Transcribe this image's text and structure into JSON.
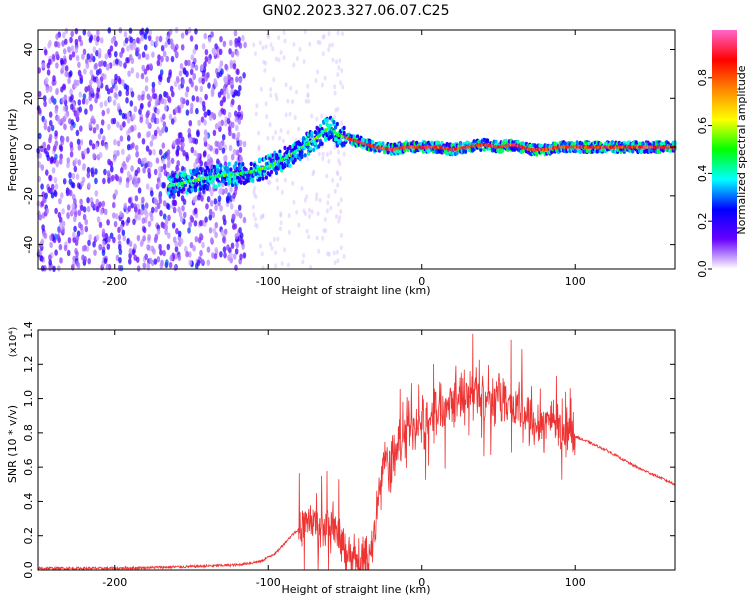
{
  "title": "GN02.2023.327.06.07.C25",
  "colors": {
    "snr_line": "#ee3333",
    "axis": "#000000",
    "colormap": [
      "#ff66cc",
      "#ff0000",
      "#ff8800",
      "#ffff00",
      "#00ff00",
      "#00ffff",
      "#0000ff",
      "#6600ff",
      "#ffffff"
    ]
  },
  "chart_data": [
    {
      "type": "heatmap",
      "title": "",
      "xlabel": "Height of straight line (km)",
      "ylabel": "Frequency (Hz)",
      "xlim": [
        -250,
        165
      ],
      "ylim": [
        -50,
        48
      ],
      "x_ticks": [
        -200,
        -100,
        0,
        100
      ],
      "x_tick_labels": [
        "-200",
        "-100",
        "0",
        "100"
      ],
      "y_ticks": [
        -40,
        -20,
        0,
        20,
        40
      ],
      "y_tick_labels": [
        "-40",
        "-20",
        "0",
        "20",
        "40"
      ],
      "colorbar": {
        "label": "Normalized spectral amplitude",
        "range": [
          0,
          1
        ],
        "ticks": [
          0.0,
          0.2,
          0.4,
          0.6,
          0.8
        ],
        "tick_labels": [
          "0.0",
          "0.2",
          "0.4",
          "0.6",
          "0.8"
        ]
      },
      "ridge": {
        "x": [
          -165,
          -150,
          -135,
          -120,
          -110,
          -100,
          -90,
          -80,
          -70,
          -60,
          -55,
          -50,
          -40,
          -30,
          -20,
          -10,
          0,
          10,
          20,
          30,
          40,
          50,
          60,
          70,
          80,
          90,
          100,
          120,
          140,
          165
        ],
        "y": [
          -16,
          -14,
          -12,
          -11,
          -10,
          -8,
          -5,
          -1,
          3,
          8,
          5,
          4,
          2,
          0,
          -1,
          0,
          0,
          0,
          -1,
          0,
          1,
          0,
          1,
          -1,
          -1,
          0,
          0,
          0,
          0,
          0
        ]
      },
      "noise_region_x": [
        -250,
        -115
      ],
      "grid": false
    },
    {
      "type": "line",
      "title": "",
      "xlabel": "Height of straight line (km)",
      "ylabel": "SNR (10 * v/v)",
      "y_scale_label": "(x10⁴)",
      "xlim": [
        -250,
        165
      ],
      "ylim": [
        0,
        1.4
      ],
      "x_ticks": [
        -200,
        -100,
        0,
        100
      ],
      "x_tick_labels": [
        "-200",
        "-100",
        "0",
        "100"
      ],
      "y_ticks": [
        0.0,
        0.2,
        0.4,
        0.6,
        0.8,
        1.0,
        1.2,
        1.4
      ],
      "y_tick_labels": [
        "0.0",
        "0.2",
        "0.4",
        "0.6",
        "0.8",
        "1.0",
        "1.2",
        "1.4"
      ],
      "series": [
        {
          "envelope_x": [
            -250,
            -200,
            -150,
            -120,
            -105,
            -95,
            -85,
            -75,
            -65,
            -55,
            -50,
            -40,
            -35,
            -30,
            -25,
            -20,
            -15,
            -10,
            -5,
            0,
            10,
            20,
            30,
            40,
            50,
            60,
            70,
            80,
            85,
            90,
            95,
            100,
            120,
            140,
            165
          ],
          "envelope_y": [
            0.01,
            0.01,
            0.02,
            0.03,
            0.05,
            0.1,
            0.2,
            0.28,
            0.25,
            0.22,
            0.08,
            0.04,
            0.05,
            0.3,
            0.65,
            0.6,
            0.75,
            0.85,
            0.8,
            0.85,
            0.95,
            1.0,
            1.03,
            1.02,
            1.0,
            0.95,
            0.9,
            0.85,
            0.9,
            0.85,
            0.8,
            0.78,
            0.7,
            0.6,
            0.5
          ],
          "jitter_x": [
            -80,
            100
          ],
          "jitter_amplitude": 0.25
        }
      ],
      "grid": false
    }
  ]
}
